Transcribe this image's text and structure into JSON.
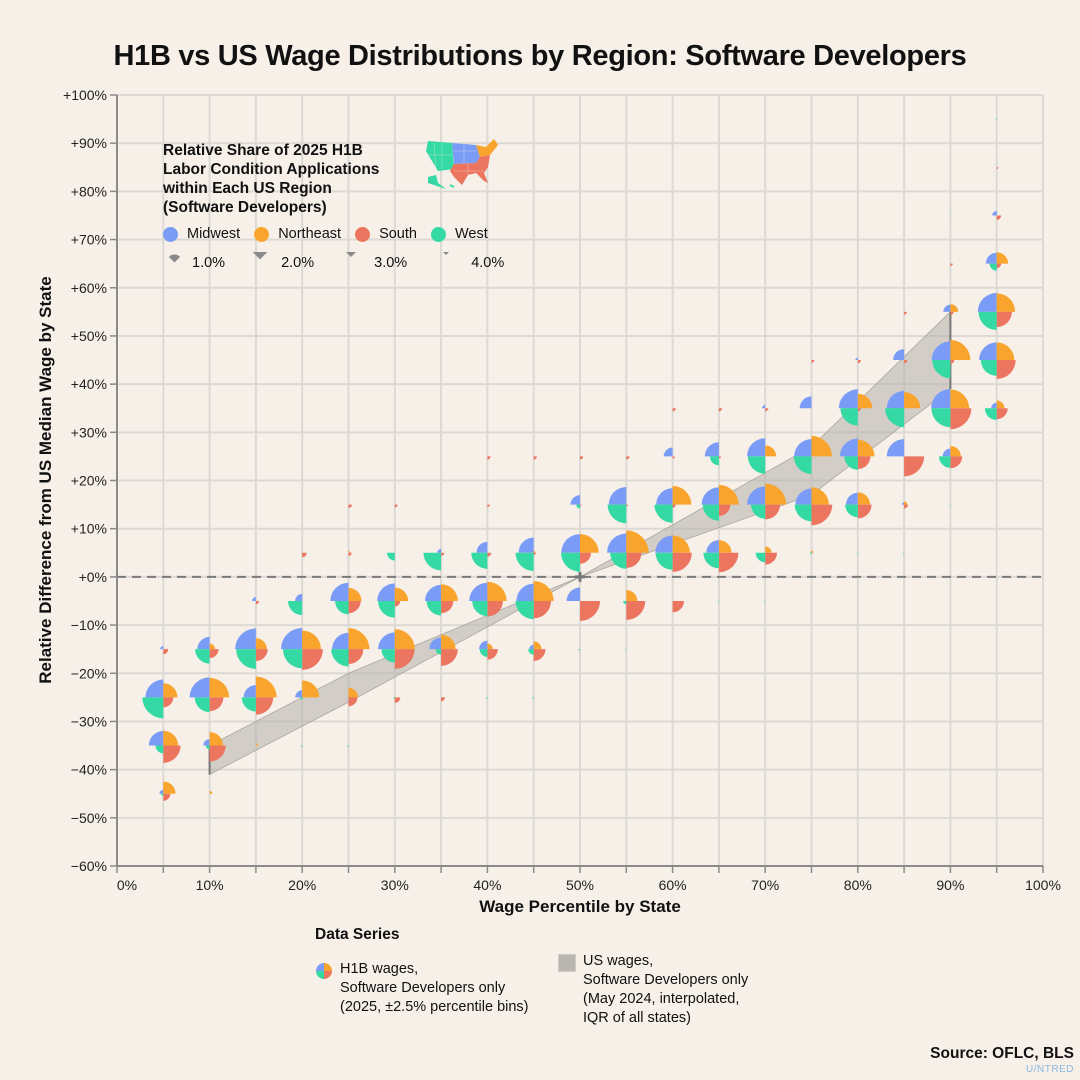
{
  "chart_data": {
    "type": "scatter",
    "subtype": "quadrant-pie-glyph scatter with IQR band",
    "title": "H1B vs US Wage Distributions by Region: Software Developers",
    "xlabel": "Wage Percentile by State",
    "ylabel": "Relative Difference from US Median Wage by State",
    "xlim": [
      0,
      100
    ],
    "ylim": [
      -60,
      100
    ],
    "x_ticks": [
      "0%",
      "10%",
      "20%",
      "30%",
      "40%",
      "50%",
      "60%",
      "70%",
      "80%",
      "90%",
      "100%"
    ],
    "y_ticks": [
      "+100%",
      "+90%",
      "+80%",
      "+70%",
      "+60%",
      "+50%",
      "+40%",
      "+30%",
      "+20%",
      "+10%",
      "+0%",
      "-10%",
      "-20%",
      "-30%",
      "-40%",
      "-50%",
      "-60%"
    ],
    "grid": true,
    "reference_line": {
      "y": 0,
      "style": "dashed"
    },
    "regions": [
      {
        "name": "Midwest",
        "color": "#7b9cf6",
        "quadrant": "top-left"
      },
      {
        "name": "Northeast",
        "color": "#f9a42c",
        "quadrant": "top-right"
      },
      {
        "name": "South",
        "color": "#ec7560",
        "quadrant": "bottom-right"
      },
      {
        "name": "West",
        "color": "#34d9a4",
        "quadrant": "bottom-left"
      }
    ],
    "size_legend": {
      "title": "Relative Share of 2025 H1B Labor Condition Applications within Each US Region (Software Developers)",
      "values": [
        1.0,
        2.0,
        3.0,
        4.0
      ],
      "labels": [
        "1.0%",
        "2.0%",
        "3.0%",
        "4.0%"
      ]
    },
    "glyph_fields": [
      "percentile",
      "rel_diff",
      "Midwest",
      "Northeast",
      "South",
      "West"
    ],
    "glyphs": [
      [
        5,
        -45,
        0.15,
        1.5,
        0.5,
        0.05
      ],
      [
        5,
        -35,
        2.1,
        2.2,
        3.0,
        0.6
      ],
      [
        5,
        -25,
        3.2,
        2.0,
        1.0,
        4.4
      ],
      [
        5,
        -15,
        0.1,
        0.0,
        0.25,
        0.0
      ],
      [
        10,
        -45,
        0.0,
        0.08,
        0.0,
        0.0
      ],
      [
        10,
        -35,
        0.4,
        1.8,
        2.6,
        0.15
      ],
      [
        10,
        -25,
        4.0,
        3.8,
        1.9,
        2.2
      ],
      [
        10,
        -15,
        1.5,
        0.3,
        0.8,
        2.1
      ],
      [
        15,
        -35,
        0.0,
        0.05,
        0.0,
        0.0
      ],
      [
        15,
        -25,
        1.5,
        4.3,
        3.0,
        2.0
      ],
      [
        15,
        -15,
        4.3,
        1.2,
        1.4,
        3.9
      ],
      [
        15,
        -5,
        0.15,
        0.0,
        0.1,
        0.0
      ],
      [
        20,
        -35,
        0.0,
        0.0,
        0.0,
        0.02
      ],
      [
        20,
        -25,
        0.5,
        2.9,
        0.0,
        0.05
      ],
      [
        20,
        -15,
        4.5,
        3.5,
        4.3,
        3.7
      ],
      [
        20,
        -5,
        0.5,
        0.0,
        0.0,
        2.0
      ],
      [
        20,
        5,
        0.0,
        0.0,
        0.2,
        0.0
      ],
      [
        25,
        -35,
        0.0,
        0.0,
        0.0,
        0.02
      ],
      [
        25,
        -25,
        0.0,
        0.9,
        0.8,
        0.0
      ],
      [
        25,
        -15,
        2.7,
        4.4,
        2.2,
        3.0
      ],
      [
        25,
        -5,
        3.3,
        1.7,
        1.5,
        1.8
      ],
      [
        25,
        5,
        0.0,
        0.03,
        0.1,
        0.0
      ],
      [
        25,
        15,
        0.0,
        0.0,
        0.12,
        0.0
      ],
      [
        30,
        -25,
        0.0,
        0.0,
        0.3,
        0.02
      ],
      [
        30,
        -15,
        2.8,
        4.0,
        3.9,
        1.8
      ],
      [
        30,
        -5,
        3.1,
        1.8,
        0.3,
        2.8
      ],
      [
        30,
        5,
        0.0,
        0.0,
        0.0,
        0.6
      ],
      [
        30,
        15,
        0.0,
        0.0,
        0.08,
        0.0
      ],
      [
        35,
        -25,
        0.0,
        0.0,
        0.15,
        0.0
      ],
      [
        35,
        -15,
        1.4,
        2.1,
        2.8,
        0.3
      ],
      [
        35,
        -5,
        2.6,
        2.8,
        1.5,
        2.1
      ],
      [
        35,
        5,
        0.15,
        0.0,
        0.1,
        3.1
      ],
      [
        40,
        -25,
        0.0,
        0.0,
        0.0,
        0.02
      ],
      [
        40,
        -15,
        0.7,
        0.3,
        1.1,
        0.6
      ],
      [
        40,
        -5,
        3.3,
        3.7,
        2.4,
        2.3
      ],
      [
        40,
        5,
        1.2,
        0.0,
        0.15,
        2.6
      ],
      [
        40,
        15,
        0.0,
        0.0,
        0.06,
        0.0
      ],
      [
        40,
        25,
        0.0,
        0.0,
        0.1,
        0.0
      ],
      [
        45,
        -25,
        0.0,
        0.0,
        0.0,
        0.02
      ],
      [
        45,
        -15,
        0.2,
        0.6,
        1.4,
        0.3
      ],
      [
        45,
        -5,
        3.0,
        4.0,
        3.0,
        3.3
      ],
      [
        45,
        5,
        2.3,
        0.03,
        0.05,
        3.3
      ],
      [
        45,
        25,
        0.0,
        0.0,
        0.1,
        0.0
      ],
      [
        50,
        -15,
        0.0,
        0.0,
        0.0,
        0.02
      ],
      [
        50,
        -5,
        1.8,
        0.0,
        4.0,
        0.0
      ],
      [
        50,
        5,
        3.5,
        3.5,
        1.2,
        3.6
      ],
      [
        50,
        15,
        0.9,
        0.0,
        0.02,
        0.15
      ],
      [
        50,
        25,
        0.0,
        0.0,
        0.1,
        0.0
      ],
      [
        55,
        -15,
        0.0,
        0.0,
        0.0,
        0.01
      ],
      [
        55,
        -5,
        0.0,
        1.2,
        3.6,
        0.1
      ],
      [
        55,
        5,
        3.7,
        5.0,
        2.3,
        2.6
      ],
      [
        55,
        15,
        3.1,
        0.0,
        0.03,
        3.5
      ],
      [
        55,
        25,
        0.0,
        0.0,
        0.1,
        0.0
      ],
      [
        60,
        -5,
        0.0,
        0.0,
        1.3,
        0.0
      ],
      [
        60,
        5,
        3.0,
        3.0,
        3.7,
        2.9
      ],
      [
        60,
        15,
        2.7,
        3.5,
        0.1,
        3.3
      ],
      [
        60,
        25,
        0.8,
        0.0,
        0.05,
        0.0
      ],
      [
        60,
        35,
        0.0,
        0.0,
        0.1,
        0.0
      ],
      [
        65,
        -5,
        0.0,
        0.0,
        0.0,
        0.01
      ],
      [
        65,
        5,
        1.6,
        1.6,
        3.8,
        2.4
      ],
      [
        65,
        15,
        3.0,
        3.9,
        1.3,
        2.6
      ],
      [
        65,
        25,
        2.0,
        0.0,
        0.04,
        0.8
      ],
      [
        65,
        35,
        0.0,
        0.0,
        0.1,
        0.0
      ],
      [
        70,
        -5,
        0.0,
        0.0,
        0.0,
        0.01
      ],
      [
        70,
        5,
        0.0,
        0.4,
        1.4,
        0.9
      ],
      [
        70,
        15,
        3.3,
        4.4,
        2.2,
        2.0
      ],
      [
        70,
        25,
        3.3,
        1.2,
        0.0,
        3.0
      ],
      [
        70,
        35,
        0.1,
        0.0,
        0.1,
        0.0
      ],
      [
        75,
        5,
        0.01,
        0.05,
        0.0,
        0.02
      ],
      [
        75,
        15,
        2.6,
        3.0,
        4.3,
        2.8
      ],
      [
        75,
        25,
        3.0,
        4.2,
        0.0,
        3.1
      ],
      [
        75,
        35,
        1.4,
        0.0,
        0.0,
        0.0
      ],
      [
        75,
        45,
        0.0,
        0.0,
        0.08,
        0.0
      ],
      [
        80,
        5,
        0.0,
        0.0,
        0.0,
        0.01
      ],
      [
        80,
        15,
        1.4,
        1.5,
        1.9,
        1.6
      ],
      [
        80,
        25,
        3.2,
        2.8,
        1.6,
        1.8
      ],
      [
        80,
        35,
        3.6,
        2.1,
        0.1,
        3.0
      ],
      [
        80,
        45,
        0.06,
        0.0,
        0.1,
        0.0
      ],
      [
        85,
        5,
        0.0,
        0.0,
        0.0,
        0.01
      ],
      [
        85,
        15,
        0.05,
        0.1,
        0.15,
        0.0
      ],
      [
        85,
        25,
        3.0,
        0.0,
        4.0,
        0.0
      ],
      [
        85,
        35,
        3.0,
        2.6,
        0.0,
        3.6
      ],
      [
        85,
        45,
        1.2,
        0.0,
        0.1,
        0.0
      ],
      [
        85,
        55,
        0.0,
        0.0,
        0.08,
        0.0
      ],
      [
        90,
        15,
        0.0,
        0.0,
        0.0,
        0.01
      ],
      [
        90,
        25,
        0.6,
        1.1,
        1.4,
        1.3
      ],
      [
        90,
        35,
        3.7,
        3.5,
        4.4,
        3.6
      ],
      [
        90,
        45,
        3.5,
        4.0,
        0.15,
        3.3
      ],
      [
        90,
        55,
        0.5,
        0.6,
        0.1,
        0.0
      ],
      [
        90,
        65,
        0.0,
        0.0,
        0.06,
        0.0
      ],
      [
        90,
        75,
        0.0,
        0.0,
        0.0,
        0.01
      ],
      [
        95,
        25,
        0.0,
        0.01,
        0.0,
        0.0
      ],
      [
        95,
        35,
        0.3,
        0.6,
        1.2,
        1.4
      ],
      [
        95,
        45,
        3.1,
        3.1,
        3.6,
        2.5
      ],
      [
        95,
        55,
        3.6,
        3.4,
        2.3,
        3.3
      ],
      [
        95,
        65,
        1.2,
        1.3,
        0.2,
        0.5
      ],
      [
        95,
        75,
        0.2,
        0.0,
        0.2,
        0.0
      ],
      [
        95,
        85,
        0.0,
        0.0,
        0.03,
        0.0
      ],
      [
        95,
        95,
        0.0,
        0.0,
        0.0,
        0.01
      ]
    ],
    "us_wages_iqr_band": {
      "label": "US wages, Software Developers only (May 2024, interpolated, IQR of all states)",
      "x": [
        10,
        25,
        50,
        75,
        90
      ],
      "low": [
        -41,
        -26,
        0,
        17,
        39
      ],
      "high": [
        -35,
        -20,
        0,
        27,
        55
      ]
    }
  },
  "legend": {
    "title_lines": [
      "Relative Share of 2025 H1B",
      "Labor Condition Applications",
      "within Each US Region",
      "(Software Developers)"
    ],
    "regions": [
      {
        "label": "Midwest",
        "color": "#7b9cf6"
      },
      {
        "label": "Northeast",
        "color": "#f9a42c"
      },
      {
        "label": "South",
        "color": "#ec7560"
      },
      {
        "label": "West",
        "color": "#34d9a4"
      }
    ],
    "sizes": [
      {
        "label": "1.0%",
        "value": 1.0
      },
      {
        "label": "2.0%",
        "value": 2.0
      },
      {
        "label": "3.0%",
        "value": 3.0
      },
      {
        "label": "4.0%",
        "value": 4.0
      }
    ],
    "map_icon": "us-regions-map-icon"
  },
  "series_legend": {
    "title": "Data Series",
    "h1b": {
      "lines": [
        "H1B wages,",
        "Software Developers only",
        "(2025, ±2.5% percentile bins)"
      ],
      "icon": "quadrant-pie-icon"
    },
    "us": {
      "lines": [
        "US wages,",
        "Software Developers only",
        "(May 2024, interpolated,",
        "IQR of all states)"
      ],
      "icon": "grey-band-swatch",
      "color": "#b9b6b1"
    }
  },
  "source": "Source: OFLC, BLS",
  "brand": "U/NTRED"
}
